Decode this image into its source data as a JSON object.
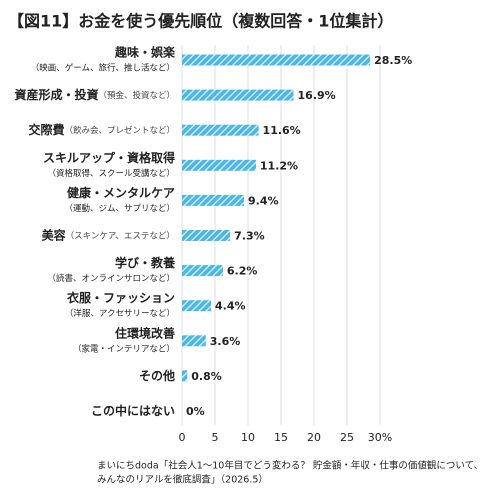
{
  "chart_data": {
    "type": "bar",
    "orientation": "horizontal",
    "title": "【図11】お金を使う優先順位（複数回答・1位集計）",
    "categories": [
      "趣味・娯楽",
      "資産形成・投資",
      "交際費",
      "スキルアップ・資格取得",
      "健康・メンタルケア",
      "美容",
      "学び・教養",
      "衣服・ファッション",
      "住環境改善",
      "その他",
      "この中にはない"
    ],
    "category_notes": [
      "（映画、ゲーム、旅行、推し活など）",
      "（預金、投資など）",
      "（飲み会、プレゼントなど）",
      "（資格取得、スクール受講など）",
      "（運動、ジム、サプリなど）",
      "（スキンケア、エステなど）",
      "（読書、オンラインサロンなど）",
      "（洋服、アクセサリーなど）",
      "（家電・インテリアなど）",
      null,
      null
    ],
    "values": [
      28.5,
      16.9,
      11.6,
      11.2,
      9.4,
      7.3,
      6.2,
      4.4,
      3.6,
      0.8,
      0
    ],
    "value_labels": [
      "28.5%",
      "16.9%",
      "11.6%",
      "11.2%",
      "9.4%",
      "7.3%",
      "6.2%",
      "4.4%",
      "3.6%",
      "0.8%",
      "0%"
    ],
    "color": "#4cb6e4",
    "xlim": [
      0,
      30
    ],
    "xticks": [
      0,
      5,
      10,
      15,
      20,
      25,
      {
        "value": 30,
        "label": "30%"
      }
    ],
    "grid": true,
    "source": [
      "まいにちdoda「社会人1～10年目でどう変わる？ 貯金額・年収・仕事の価値観について、",
      "みんなのリアルを徹底調査」（2026.5）"
    ]
  }
}
